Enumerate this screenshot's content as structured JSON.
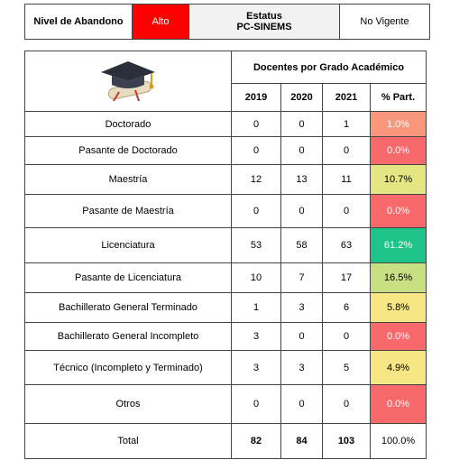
{
  "status_bar": {
    "abandono_label": "Nivel de Abandono",
    "abandono_value": "Alto",
    "abandono_color": "#ff0000",
    "estatus_label_1": "Estatus",
    "estatus_label_2": "PC-SINEMS",
    "estatus_value": "No Vigente"
  },
  "table": {
    "title": "Docentes por Grado Académico",
    "columns": [
      "2019",
      "2020",
      "2021",
      "% Part."
    ],
    "rows": [
      {
        "label": "Doctorado",
        "values": [
          0,
          0,
          1
        ],
        "share": "1.0%",
        "color": "#f8977b",
        "text_color": "#ffffff"
      },
      {
        "label": "Pasante de Doctorado",
        "values": [
          0,
          0,
          0
        ],
        "share": "0.0%",
        "color": "#f8696b",
        "text_color": "#ffffff"
      },
      {
        "label": "Maestría",
        "values": [
          12,
          13,
          11
        ],
        "share": "10.7%",
        "color": "#e3e682",
        "text_color": "#000000"
      },
      {
        "label": "Pasante de Maestría",
        "values": [
          0,
          0,
          0
        ],
        "share": "0.0%",
        "color": "#f8696b",
        "text_color": "#ffffff"
      },
      {
        "label": "Licenciatura",
        "values": [
          53,
          58,
          63
        ],
        "share": "61.2%",
        "color": "#1ec48a",
        "text_color": "#ffffff"
      },
      {
        "label": "Pasante de Licenciatura",
        "values": [
          10,
          7,
          17
        ],
        "share": "16.5%",
        "color": "#c7e082",
        "text_color": "#000000"
      },
      {
        "label": "Bachillerato General Terminado",
        "values": [
          1,
          3,
          6
        ],
        "share": "5.8%",
        "color": "#f6e784",
        "text_color": "#000000"
      },
      {
        "label": "Bachillerato General Incompleto",
        "values": [
          3,
          0,
          0
        ],
        "share": "0.0%",
        "color": "#f8696b",
        "text_color": "#ffffff"
      },
      {
        "label": "Técnico (Incompleto y Terminado)",
        "values": [
          3,
          3,
          5
        ],
        "share": "4.9%",
        "color": "#f7e784",
        "text_color": "#000000"
      },
      {
        "label": "Otros",
        "values": [
          0,
          0,
          0
        ],
        "share": "0.0%",
        "color": "#f8696b",
        "text_color": "#ffffff"
      }
    ],
    "total": {
      "label": "Total",
      "values": [
        82,
        84,
        103
      ],
      "share": "100.0%"
    }
  }
}
